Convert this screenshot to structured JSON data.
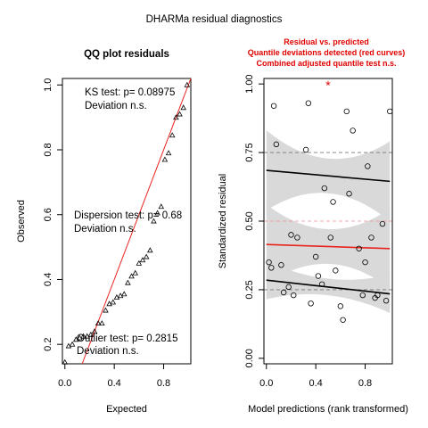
{
  "figure_title": "DHARMa residual diagnostics",
  "colors": {
    "line_red": "#e8231e",
    "band_gray": "#d9d9d9",
    "warning_red": "#e00000"
  },
  "chart_data": [
    {
      "type": "scatter",
      "title": "QQ plot residuals",
      "xlabel": "Expected",
      "ylabel": "Observed",
      "xlim": [
        -0.02,
        1.02
      ],
      "ylim": [
        0.14,
        1.02
      ],
      "xticks": [
        "0.0",
        "0.4",
        "0.8"
      ],
      "yticks": [
        "0.2",
        "0.4",
        "0.6",
        "0.8",
        "1.0"
      ],
      "marker": "triangle",
      "reference_line": "y = x",
      "annotations": {
        "ks_test": "KS test: p= 0.08975",
        "ks_deviation": "Deviation  n.s.",
        "dispersion_test": "Dispersion test: p= 0.68",
        "dispersion_deviation": "Deviation  n.s.",
        "outlier_test": "Outlier test: p= 0.2815",
        "outlier_deviation": "Deviation  n.s."
      },
      "points": {
        "x": [
          0.0,
          0.03,
          0.06,
          0.09,
          0.12,
          0.15,
          0.18,
          0.21,
          0.24,
          0.27,
          0.3,
          0.33,
          0.36,
          0.39,
          0.42,
          0.45,
          0.48,
          0.51,
          0.54,
          0.57,
          0.6,
          0.63,
          0.66,
          0.69,
          0.72,
          0.75,
          0.78,
          0.81,
          0.84,
          0.87,
          0.9,
          0.93,
          0.96,
          0.99
        ],
        "y": [
          0.145,
          0.195,
          0.2,
          0.215,
          0.22,
          0.225,
          0.225,
          0.23,
          0.24,
          0.265,
          0.265,
          0.305,
          0.325,
          0.33,
          0.345,
          0.35,
          0.355,
          0.39,
          0.41,
          0.42,
          0.45,
          0.46,
          0.47,
          0.49,
          0.58,
          0.605,
          0.625,
          0.77,
          0.79,
          0.845,
          0.9,
          0.91,
          0.93,
          1.0
        ]
      }
    },
    {
      "type": "scatter",
      "title_lines": [
        "Residual vs. predicted",
        "Quantile deviations detected (red curves)",
        "Combined adjusted quantile test n.s."
      ],
      "xlabel": "Model predictions (rank transformed)",
      "ylabel": "Standardized residual",
      "xlim": [
        -0.02,
        1.02
      ],
      "ylim": [
        -0.02,
        1.02
      ],
      "xticks": [
        "0.0",
        "0.4",
        "0.8"
      ],
      "yticks": [
        "0.00",
        "0.25",
        "0.50",
        "0.75",
        "1.00"
      ],
      "reference_lines_y": [
        0.25,
        0.5,
        0.75
      ],
      "outlier": {
        "x": 0.5,
        "y": 0.995,
        "marker": "*"
      },
      "points": {
        "x": [
          0.02,
          0.04,
          0.06,
          0.08,
          0.12,
          0.14,
          0.18,
          0.2,
          0.22,
          0.25,
          0.32,
          0.34,
          0.36,
          0.4,
          0.42,
          0.45,
          0.47,
          0.52,
          0.54,
          0.56,
          0.6,
          0.62,
          0.65,
          0.67,
          0.7,
          0.75,
          0.78,
          0.8,
          0.82,
          0.85,
          0.88,
          0.9,
          0.94,
          0.97,
          1.0
        ],
        "y": [
          0.35,
          0.33,
          0.92,
          0.78,
          0.34,
          0.24,
          0.26,
          0.45,
          0.23,
          0.44,
          0.76,
          0.93,
          0.2,
          0.37,
          0.3,
          0.27,
          0.62,
          0.44,
          0.57,
          0.32,
          0.19,
          0.14,
          0.9,
          0.6,
          0.83,
          0.4,
          0.23,
          0.35,
          0.7,
          0.44,
          0.22,
          0.23,
          0.49,
          0.21,
          0.9
        ]
      },
      "quantile_fits": [
        {
          "quantile": 0.25,
          "y_at_x0": 0.285,
          "y_at_x1": 0.235,
          "band_halfwidth": 0.055
        },
        {
          "quantile": 0.5,
          "y_at_x0": 0.415,
          "y_at_x1": 0.4,
          "band_halfwidth": 0.115
        },
        {
          "quantile": 0.75,
          "y_at_x0": 0.685,
          "y_at_x1": 0.645,
          "band_halfwidth": 0.115
        }
      ]
    }
  ]
}
